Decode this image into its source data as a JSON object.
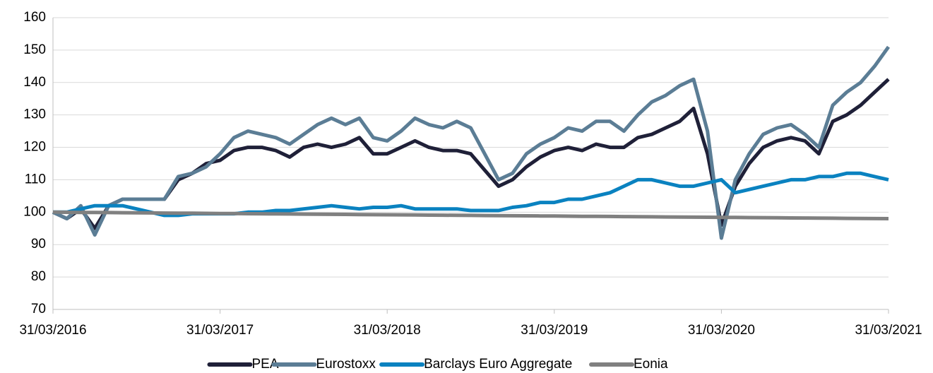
{
  "chart_data": {
    "type": "line",
    "categories": [
      "31/03/2016",
      null,
      null,
      null,
      null,
      null,
      null,
      null,
      null,
      null,
      null,
      null,
      "31/03/2017",
      null,
      null,
      null,
      null,
      null,
      null,
      null,
      null,
      null,
      null,
      null,
      "31/03/2018",
      null,
      null,
      null,
      null,
      null,
      null,
      null,
      null,
      null,
      null,
      null,
      "31/03/2019",
      null,
      null,
      null,
      null,
      null,
      null,
      null,
      null,
      null,
      null,
      null,
      "31/03/2020",
      null,
      null,
      null,
      null,
      null,
      null,
      null,
      null,
      null,
      null,
      null,
      "31/03/2021"
    ],
    "series": [
      {
        "name": "PEA",
        "color": "#1f2038",
        "values": [
          100,
          98,
          101,
          95,
          102,
          104,
          104,
          104,
          104,
          110,
          112,
          115,
          116,
          119,
          120,
          120,
          119,
          117,
          120,
          121,
          120,
          121,
          123,
          118,
          118,
          120,
          122,
          120,
          119,
          119,
          118,
          113,
          108,
          110,
          114,
          117,
          119,
          120,
          119,
          121,
          120,
          120,
          123,
          124,
          126,
          128,
          132,
          118,
          96,
          108,
          115,
          120,
          122,
          123,
          122,
          118,
          128,
          130,
          133,
          137,
          141
        ]
      },
      {
        "name": "Eurostoxx",
        "color": "#5b7d95",
        "values": [
          100,
          98,
          102,
          93,
          102,
          104,
          104,
          104,
          104,
          111,
          112,
          114,
          118,
          123,
          125,
          124,
          123,
          121,
          124,
          127,
          129,
          127,
          129,
          123,
          122,
          125,
          129,
          127,
          126,
          128,
          126,
          118,
          110,
          112,
          118,
          121,
          123,
          126,
          125,
          128,
          128,
          125,
          130,
          134,
          136,
          139,
          141,
          125,
          92,
          110,
          118,
          124,
          126,
          127,
          124,
          120,
          133,
          137,
          140,
          145,
          151
        ]
      },
      {
        "name": "Barclays Euro Aggregate",
        "color": "#0a82c0",
        "values": [
          100,
          100,
          101,
          102,
          102,
          102,
          101,
          100,
          99,
          99,
          99.5,
          99.5,
          99.5,
          99.5,
          100,
          100,
          100.5,
          100.5,
          101,
          101.5,
          102,
          101.5,
          101,
          101.5,
          101.5,
          102,
          101,
          101,
          101,
          101,
          100.5,
          100.5,
          100.5,
          101.5,
          102,
          103,
          103,
          104,
          104,
          105,
          106,
          108,
          110,
          110,
          109,
          108,
          108,
          109,
          110,
          106,
          107,
          108,
          109,
          110,
          110,
          111,
          111,
          112,
          112,
          111,
          110
        ]
      },
      {
        "name": "Eonia",
        "color": "#808080",
        "values": [
          100,
          99.97,
          99.93,
          99.9,
          99.87,
          99.83,
          99.8,
          99.77,
          99.73,
          99.7,
          99.67,
          99.63,
          99.6,
          99.57,
          99.53,
          99.5,
          99.47,
          99.43,
          99.4,
          99.37,
          99.33,
          99.3,
          99.27,
          99.23,
          99.2,
          99.17,
          99.13,
          99.1,
          99.07,
          99.03,
          99,
          98.97,
          98.93,
          98.9,
          98.87,
          98.83,
          98.8,
          98.77,
          98.73,
          98.7,
          98.67,
          98.63,
          98.6,
          98.57,
          98.53,
          98.5,
          98.47,
          98.43,
          98.4,
          98.37,
          98.33,
          98.3,
          98.27,
          98.23,
          98.2,
          98.17,
          98.13,
          98.1,
          98.07,
          98.03,
          98
        ]
      }
    ],
    "ylim": [
      70,
      160
    ],
    "yticks": [
      70,
      80,
      90,
      100,
      110,
      120,
      130,
      140,
      150,
      160
    ],
    "grid": true,
    "legend": "bottom"
  }
}
